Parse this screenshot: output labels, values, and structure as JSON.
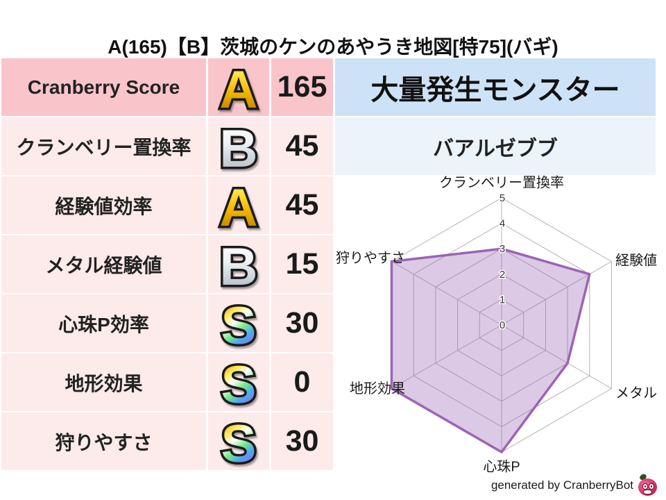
{
  "title": "A(165)【B】茨城のケンのあやうき地図[特75](バギ)",
  "table": {
    "rows": [
      {
        "label": "Cranberry Score",
        "grade": "A",
        "value": "165"
      },
      {
        "label": "クランベリー置換率",
        "grade": "B",
        "value": "45"
      },
      {
        "label": "経験値効率",
        "grade": "A",
        "value": "45"
      },
      {
        "label": "メタル経験値",
        "grade": "B",
        "value": "15"
      },
      {
        "label": "心珠P効率",
        "grade": "S",
        "value": "30"
      },
      {
        "label": "地形効果",
        "grade": "S",
        "value": "0"
      },
      {
        "label": "狩りやすさ",
        "grade": "S",
        "value": "30"
      }
    ]
  },
  "monster_panel": {
    "header": "大量発生モンスター",
    "name": "バアルゼブブ"
  },
  "chart_data": {
    "type": "radar",
    "axes": [
      "クランベリー置換率",
      "経験値",
      "メタル",
      "心珠P",
      "地形効果",
      "狩りやすさ"
    ],
    "values": [
      3,
      4,
      3,
      5,
      5,
      5
    ],
    "ticks": [
      0,
      1,
      2,
      3,
      4,
      5
    ],
    "range": [
      0,
      5
    ],
    "grid": true,
    "legend": "none",
    "fill_color": "rgba(155,100,180,0.35)",
    "stroke_color": "#9b64b4",
    "grid_color": "#b3b3b3"
  },
  "footer": {
    "credit": "generated by CranberryBot",
    "logo_icon": "cranberry-mascot-icon"
  },
  "colors": {
    "score_row_bg": "#f9c5ca",
    "row_bg": "#fdeaea",
    "monster_header_bg": "#cde2f6",
    "monster_name_bg": "#ebf3fb"
  },
  "grade_styles": {
    "A": {
      "name": "gold",
      "diagonal": false,
      "stops": [
        [
          "0%",
          "#fff59e"
        ],
        [
          "30%",
          "#ffd92e"
        ],
        [
          "55%",
          "#f0b400"
        ],
        [
          "80%",
          "#c98c00"
        ],
        [
          "100%",
          "#a87400"
        ]
      ]
    },
    "B": {
      "name": "silver",
      "diagonal": false,
      "stops": [
        [
          "0%",
          "#ffffff"
        ],
        [
          "40%",
          "#eef2f4"
        ],
        [
          "65%",
          "#cdd6dc"
        ],
        [
          "100%",
          "#a4b0ba"
        ]
      ]
    },
    "S": {
      "name": "rainbow",
      "diagonal": true,
      "stops": [
        [
          "0%",
          "#ff4fc8"
        ],
        [
          "18%",
          "#ff9440"
        ],
        [
          "33%",
          "#ffe84d"
        ],
        [
          "50%",
          "#ffffff"
        ],
        [
          "66%",
          "#7dea85"
        ],
        [
          "83%",
          "#49a7f5"
        ],
        [
          "100%",
          "#9a6cf0"
        ]
      ]
    }
  }
}
